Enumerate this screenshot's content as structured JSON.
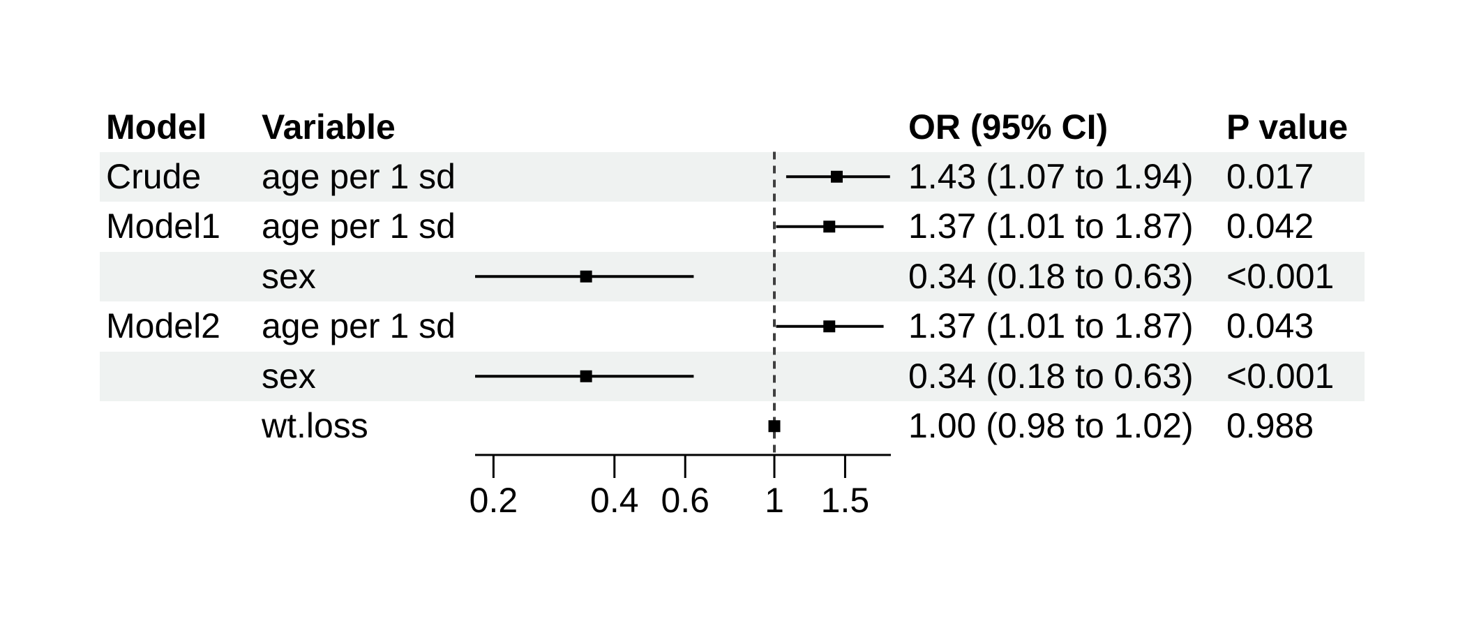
{
  "chart_data": {
    "type": "forest_plot",
    "title": "",
    "columns": [
      "Model",
      "Variable",
      "OR (95% CI)",
      "P value"
    ],
    "rows": [
      {
        "model": "Crude",
        "variable": "age per 1 sd",
        "or_ci": "1.43 (1.07 to 1.94)",
        "p": "0.017",
        "est": 1.43,
        "low": 1.07,
        "high": 1.94,
        "shaded": true
      },
      {
        "model": "Model1",
        "variable": "age per 1 sd",
        "or_ci": "1.37 (1.01 to 1.87)",
        "p": "0.042",
        "est": 1.37,
        "low": 1.01,
        "high": 1.87,
        "shaded": false
      },
      {
        "model": "",
        "variable": "sex",
        "or_ci": "0.34 (0.18 to 0.63)",
        "p": "<0.001",
        "est": 0.34,
        "low": 0.18,
        "high": 0.63,
        "shaded": true
      },
      {
        "model": "Model2",
        "variable": "age per 1 sd",
        "or_ci": "1.37 (1.01 to 1.87)",
        "p": "0.043",
        "est": 1.37,
        "low": 1.01,
        "high": 1.87,
        "shaded": false
      },
      {
        "model": "",
        "variable": "sex",
        "or_ci": "0.34 (0.18 to 0.63)",
        "p": "<0.001",
        "est": 0.34,
        "low": 0.18,
        "high": 0.63,
        "shaded": true
      },
      {
        "model": "",
        "variable": "wt.loss",
        "or_ci": "1.00 (0.98 to 1.02)",
        "p": "0.988",
        "est": 1.0,
        "low": 0.98,
        "high": 1.02,
        "shaded": false
      }
    ],
    "x_axis": {
      "scale": "log10",
      "ticks": [
        0.2,
        0.4,
        0.6,
        1,
        1.5
      ],
      "tick_labels": [
        "0.2",
        "0.4",
        "0.6",
        "1",
        "1.5"
      ],
      "domain": [
        0.18,
        1.95
      ],
      "reference_line": 1
    },
    "legend": null,
    "grid": false,
    "colors": {
      "shaded_row": "#eff2f1",
      "ci_line": "#000000",
      "marker": "#000000",
      "axis": "#000000",
      "reference_line": "#3f3f3f",
      "text": "#000000",
      "background": "#ffffff"
    }
  }
}
